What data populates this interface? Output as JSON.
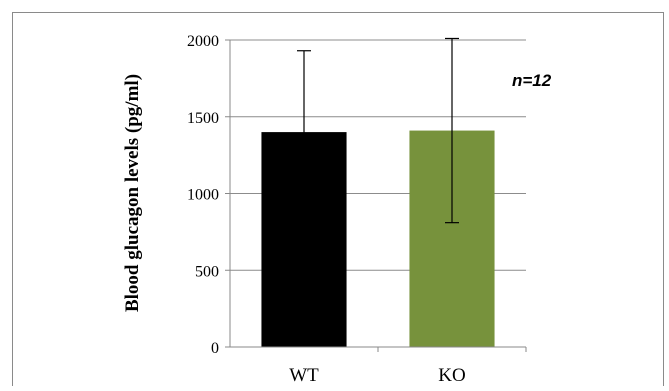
{
  "chart_data": {
    "type": "bar",
    "categories": [
      "WT",
      "KO"
    ],
    "values": [
      1400,
      1410
    ],
    "error": [
      530,
      600
    ],
    "ylabel": "Blood glucagon levels (pg/ml)",
    "xlabel": "",
    "ylim": [
      0,
      2000
    ],
    "yticks": [
      0,
      500,
      1000,
      1500,
      2000
    ],
    "grid": true,
    "annotation": "n=12",
    "colors": [
      "#000000",
      "#77923c"
    ]
  }
}
